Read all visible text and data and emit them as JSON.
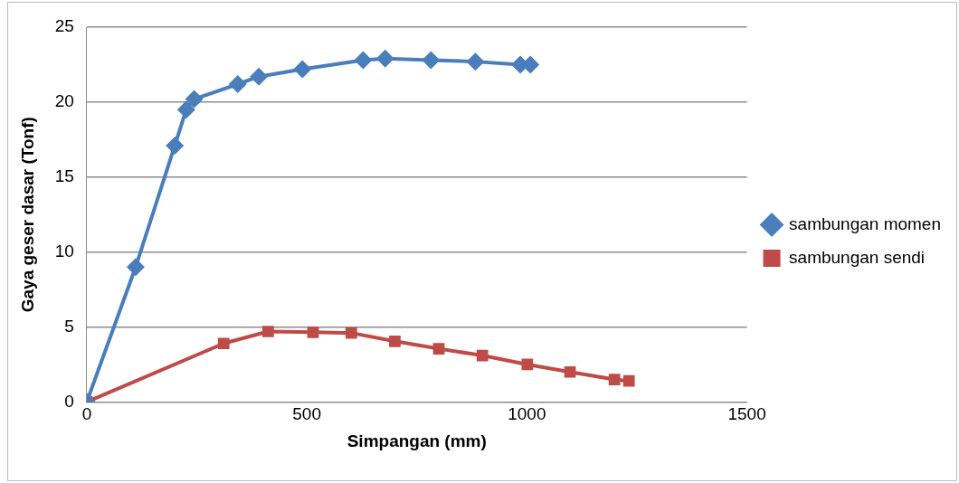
{
  "chart_data": {
    "type": "line",
    "xlabel": "Simpangan (mm)",
    "ylabel": "Gaya geser dasar (Tonf)",
    "xlim": [
      0,
      1500
    ],
    "xticks": [
      0,
      500,
      1000,
      1500
    ],
    "ylim": [
      0,
      25
    ],
    "yticks": [
      0,
      5,
      10,
      15,
      20,
      25
    ],
    "grid": "y",
    "legend": "right",
    "series": [
      {
        "name": "sambungan momen",
        "color": "#4a7ebb",
        "marker": "diamond",
        "x": [
          0,
          111,
          200,
          226,
          244,
          343,
          391,
          490,
          628,
          678,
          782,
          883,
          985,
          1008
        ],
        "values": [
          0,
          9.0,
          17.1,
          19.5,
          20.2,
          21.2,
          21.7,
          22.2,
          22.8,
          22.9,
          22.8,
          22.7,
          22.5,
          22.5
        ]
      },
      {
        "name": "sambungan sendi",
        "color": "#be4b48",
        "marker": "square",
        "x": [
          0,
          311,
          412,
          514,
          601,
          700,
          800,
          899,
          1001,
          1098,
          1199,
          1232
        ],
        "values": [
          0,
          3.9,
          4.7,
          4.65,
          4.6,
          4.05,
          3.55,
          3.1,
          2.5,
          2.0,
          1.5,
          1.4
        ]
      }
    ]
  }
}
